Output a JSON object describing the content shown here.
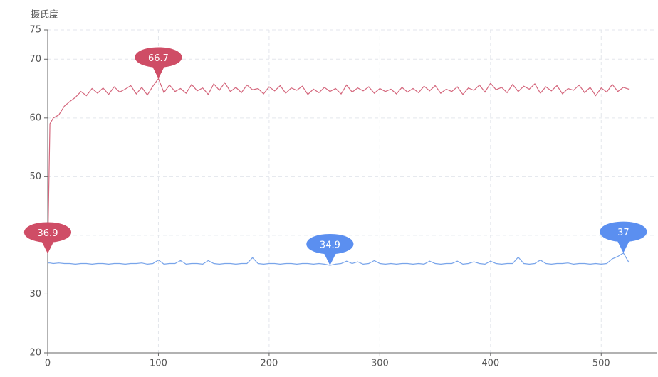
{
  "chart_data": {
    "type": "line",
    "y_axis_label": "摄氏度",
    "xlim": [
      0,
      550
    ],
    "ylim": [
      20,
      75
    ],
    "xticks": [
      0,
      100,
      200,
      300,
      400,
      500
    ],
    "yticks": [
      20,
      30,
      40,
      50,
      60,
      70,
      75
    ],
    "grid": true,
    "x": [
      0,
      2,
      5,
      10,
      15,
      20,
      25,
      30,
      35,
      40,
      45,
      50,
      55,
      60,
      65,
      70,
      75,
      80,
      85,
      90,
      95,
      100,
      105,
      110,
      115,
      120,
      125,
      130,
      135,
      140,
      145,
      150,
      155,
      160,
      165,
      170,
      175,
      180,
      185,
      190,
      195,
      200,
      205,
      210,
      215,
      220,
      225,
      230,
      235,
      240,
      245,
      250,
      255,
      260,
      265,
      270,
      275,
      280,
      285,
      290,
      295,
      300,
      305,
      310,
      315,
      320,
      325,
      330,
      335,
      340,
      345,
      350,
      355,
      360,
      365,
      370,
      375,
      380,
      385,
      390,
      395,
      400,
      405,
      410,
      415,
      420,
      425,
      430,
      435,
      440,
      445,
      450,
      455,
      460,
      465,
      470,
      475,
      480,
      485,
      490,
      495,
      500,
      505,
      510,
      515,
      520,
      525
    ],
    "series": [
      {
        "color": "#d4667c",
        "pin_color": "#cf4d66",
        "values": [
          36.9,
          59.0,
          60.0,
          60.5,
          62.0,
          62.8,
          63.5,
          64.5,
          63.8,
          65.0,
          64.2,
          65.1,
          64.0,
          65.3,
          64.4,
          64.9,
          65.5,
          64.1,
          65.2,
          63.9,
          65.4,
          66.7,
          64.3,
          65.6,
          64.5,
          65.0,
          64.2,
          65.7,
          64.6,
          65.1,
          64.0,
          65.8,
          64.7,
          66.0,
          64.5,
          65.2,
          64.3,
          65.6,
          64.8,
          65.0,
          64.1,
          65.3,
          64.6,
          65.5,
          64.2,
          65.1,
          64.7,
          65.4,
          64.0,
          64.9,
          64.3,
          65.2,
          64.5,
          65.0,
          64.1,
          65.6,
          64.4,
          65.1,
          64.6,
          65.3,
          64.2,
          65.0,
          64.5,
          64.9,
          64.1,
          65.2,
          64.4,
          65.0,
          64.3,
          65.4,
          64.6,
          65.5,
          64.2,
          64.9,
          64.5,
          65.3,
          64.0,
          65.1,
          64.7,
          65.6,
          64.4,
          65.9,
          64.8,
          65.2,
          64.3,
          65.7,
          64.5,
          65.4,
          64.9,
          65.8,
          64.2,
          65.3,
          64.6,
          65.5,
          64.1,
          65.0,
          64.7,
          65.6,
          64.3,
          65.2,
          63.8,
          65.1,
          64.4,
          65.7,
          64.5,
          65.2,
          64.9
        ],
        "mark_points": [
          {
            "x": 100,
            "value": 66.7
          },
          {
            "x": 0,
            "value": 36.9
          }
        ]
      },
      {
        "color": "#78a4ea",
        "pin_color": "#5b8ff0",
        "values": [
          35.3,
          35.3,
          35.2,
          35.3,
          35.2,
          35.2,
          35.1,
          35.2,
          35.2,
          35.1,
          35.2,
          35.2,
          35.1,
          35.2,
          35.2,
          35.1,
          35.2,
          35.2,
          35.3,
          35.1,
          35.2,
          35.8,
          35.1,
          35.2,
          35.2,
          35.7,
          35.1,
          35.2,
          35.2,
          35.1,
          35.7,
          35.2,
          35.1,
          35.2,
          35.2,
          35.1,
          35.2,
          35.2,
          36.2,
          35.2,
          35.1,
          35.2,
          35.2,
          35.1,
          35.2,
          35.2,
          35.1,
          35.2,
          35.2,
          35.1,
          35.2,
          35.1,
          34.9,
          35.1,
          35.2,
          35.6,
          35.2,
          35.5,
          35.1,
          35.2,
          35.7,
          35.2,
          35.1,
          35.2,
          35.1,
          35.2,
          35.2,
          35.1,
          35.2,
          35.1,
          35.6,
          35.2,
          35.1,
          35.2,
          35.2,
          35.6,
          35.1,
          35.2,
          35.5,
          35.2,
          35.1,
          35.6,
          35.2,
          35.1,
          35.2,
          35.2,
          36.3,
          35.2,
          35.1,
          35.2,
          35.8,
          35.2,
          35.1,
          35.2,
          35.2,
          35.3,
          35.1,
          35.2,
          35.2,
          35.1,
          35.2,
          35.1,
          35.2,
          36.0,
          36.4,
          37.0,
          35.4
        ],
        "mark_points": [
          {
            "x": 255,
            "value": 34.9
          },
          {
            "x": 520,
            "value": 37
          }
        ]
      }
    ]
  }
}
